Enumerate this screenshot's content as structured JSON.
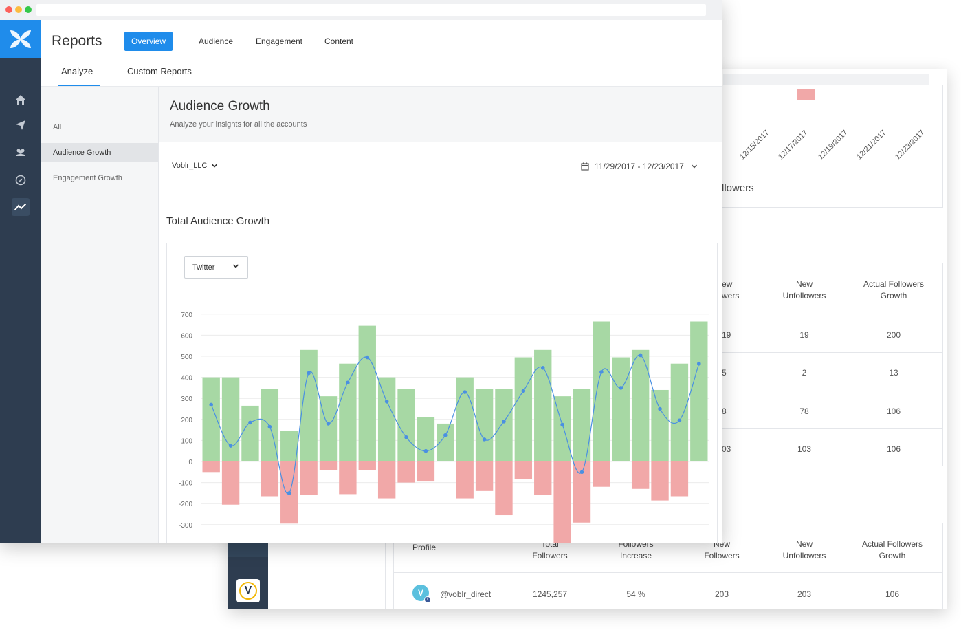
{
  "colors": {
    "accent": "#1f8ceb",
    "sidebar": "#2e3d50",
    "positive_bar": "#a7d8a4",
    "negative_bar": "#f1a8a8",
    "line": "#4a90e2"
  },
  "app": {
    "title": "Reports"
  },
  "top_nav": [
    {
      "label": "Overview",
      "active": true
    },
    {
      "label": "Audience",
      "active": false
    },
    {
      "label": "Engagement",
      "active": false
    },
    {
      "label": "Content",
      "active": false
    }
  ],
  "sub_tabs": [
    {
      "label": "Analyze",
      "active": true
    },
    {
      "label": "Custom Reports",
      "active": false
    }
  ],
  "side_icons": [
    "home-icon",
    "send-icon",
    "users-icon",
    "compass-icon",
    "analytics-icon"
  ],
  "left_menu": [
    {
      "label": "All",
      "active": false
    },
    {
      "label": "Audience Growth",
      "active": true
    },
    {
      "label": "Engagement Growth",
      "active": false
    }
  ],
  "page": {
    "title": "Audience Growth",
    "subtitle": "Analyze your insights for all the  accounts",
    "account_select": "Voblr_LLC",
    "date_range": "11/29/2017 - 12/23/2017",
    "section_title": "Total Audience Growth",
    "network_select": "Twitter"
  },
  "chart_data": {
    "type": "bar",
    "y_ticks": [
      "700",
      "600",
      "500",
      "400",
      "300",
      "200",
      "100",
      "0",
      "-100",
      "-200",
      "-300"
    ],
    "ylim": [
      -400,
      700
    ],
    "grid": true,
    "series": [
      {
        "values": [
          400,
          400,
          265,
          345,
          145,
          530,
          310,
          465,
          645,
          400,
          345,
          210,
          180,
          400,
          345,
          345,
          495,
          530,
          310,
          345,
          665,
          495,
          530,
          340,
          465,
          665
        ]
      },
      {
        "values": [
          -50,
          -205,
          0,
          -165,
          -295,
          -160,
          -40,
          -155,
          -40,
          -175,
          -100,
          -95,
          0,
          -175,
          -140,
          -255,
          -85,
          -160,
          -390,
          -290,
          -120,
          0,
          -130,
          -185,
          -165,
          0
        ]
      },
      {
        "type": "line",
        "values": [
          270,
          75,
          185,
          165,
          -150,
          420,
          180,
          375,
          495,
          285,
          115,
          50,
          125,
          330,
          105,
          190,
          335,
          445,
          175,
          -50,
          425,
          350,
          505,
          250,
          195,
          465
        ]
      }
    ]
  },
  "back_panel": {
    "date_ticks": [
      "12/15/2017",
      "12/17/2017",
      "12/19/2017",
      "12/21/2017",
      "12/23/2017"
    ],
    "partial_tick": "7",
    "followers_fragment": "llowers",
    "table1": {
      "headers": [
        "ew\nwers",
        "New\nUnfollowers",
        "Actual Followers\nGrowth"
      ],
      "rows": [
        [
          "19",
          "19",
          "200"
        ],
        [
          "5",
          "2",
          "13"
        ],
        [
          "8",
          "78",
          "106"
        ],
        [
          "03",
          "103",
          "106"
        ]
      ]
    },
    "table2": {
      "headers": [
        "Profile",
        "Total\nFollowers",
        "Followers\nIncrease",
        "New\nFollowers",
        "New\nUnfollowers",
        "Actual Followers\nGrowth"
      ],
      "row": [
        "@voblr_direct",
        "1245,257",
        "54 %",
        "203",
        "203",
        "106"
      ]
    }
  }
}
